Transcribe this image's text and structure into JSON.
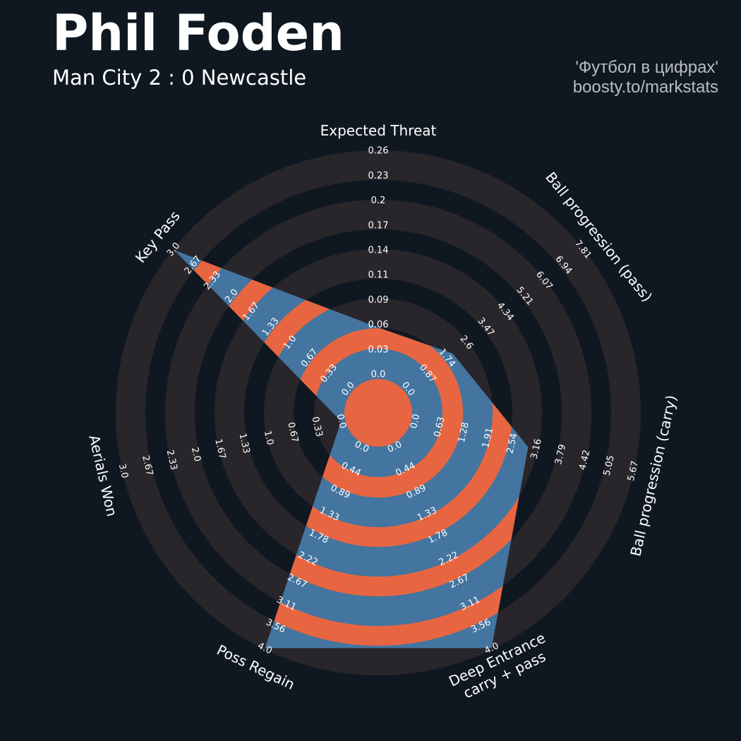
{
  "header": {
    "title": "Phil Foden",
    "subtitle": "Man City 2 : 0 Newcastle",
    "credit_line1": "'Футбол в цифрах'",
    "credit_line2": "boosty.to/markstats"
  },
  "chart_data": {
    "type": "radar",
    "colors": {
      "background": "#0f1821",
      "ring": "#28252b",
      "fill_primary": "#4375a0",
      "fill_alternate": "#e76641"
    },
    "params": [
      {
        "label": [
          "Expected Threat"
        ],
        "min": 0,
        "max": 0.26,
        "value": 0.055,
        "ticks": [
          "0.0",
          "0.03",
          "0.06",
          "0.09",
          "0.11",
          "0.14",
          "0.17",
          "0.2",
          "0.23",
          "0.26"
        ]
      },
      {
        "label": [
          "Ball progression (pass)"
        ],
        "min": 0,
        "max": 7.81,
        "value": 2.0,
        "ticks": [
          "0.0",
          "0.87",
          "1.74",
          "2.6",
          "3.47",
          "4.34",
          "5.21",
          "6.07",
          "6.94",
          "7.81"
        ]
      },
      {
        "label": [
          "Ball progression (carry)"
        ],
        "min": 0,
        "max": 5.67,
        "value": 2.94,
        "ticks": [
          "0.0",
          "0.63",
          "1.28",
          "1.91",
          "2.54",
          "3.16",
          "3.79",
          "4.42",
          "5.05",
          "5.67"
        ]
      },
      {
        "label": [
          "Deep Entrance",
          "carry + pass"
        ],
        "min": 0,
        "max": 4.0,
        "value": 4.0,
        "ticks": [
          "0.0",
          "0.44",
          "0.89",
          "1.33",
          "1.78",
          "2.22",
          "2.67",
          "3.11",
          "3.56",
          "4.0"
        ]
      },
      {
        "label": [
          "Poss Regain"
        ],
        "min": 0,
        "max": 4.0,
        "value": 4.0,
        "ticks": [
          "0.0",
          "0.44",
          "0.89",
          "1.33",
          "1.78",
          "2.22",
          "2.67",
          "3.11",
          "3.56",
          "4.0"
        ]
      },
      {
        "label": [
          "Aerials Won"
        ],
        "min": 0,
        "max": 3.0,
        "value": 0.0,
        "ticks": [
          "0.0",
          "0.33",
          "0.67",
          "1.0",
          "1.33",
          "1.67",
          "2.0",
          "2.33",
          "2.67",
          "3.0"
        ]
      },
      {
        "label": [
          "Key Pass"
        ],
        "min": 0,
        "max": 3.0,
        "value": 3.0,
        "ticks": [
          "0.0",
          "0.33",
          "0.67",
          "1.0",
          "1.33",
          "1.67",
          "2.0",
          "2.33",
          "2.67",
          "3.0"
        ]
      }
    ]
  }
}
